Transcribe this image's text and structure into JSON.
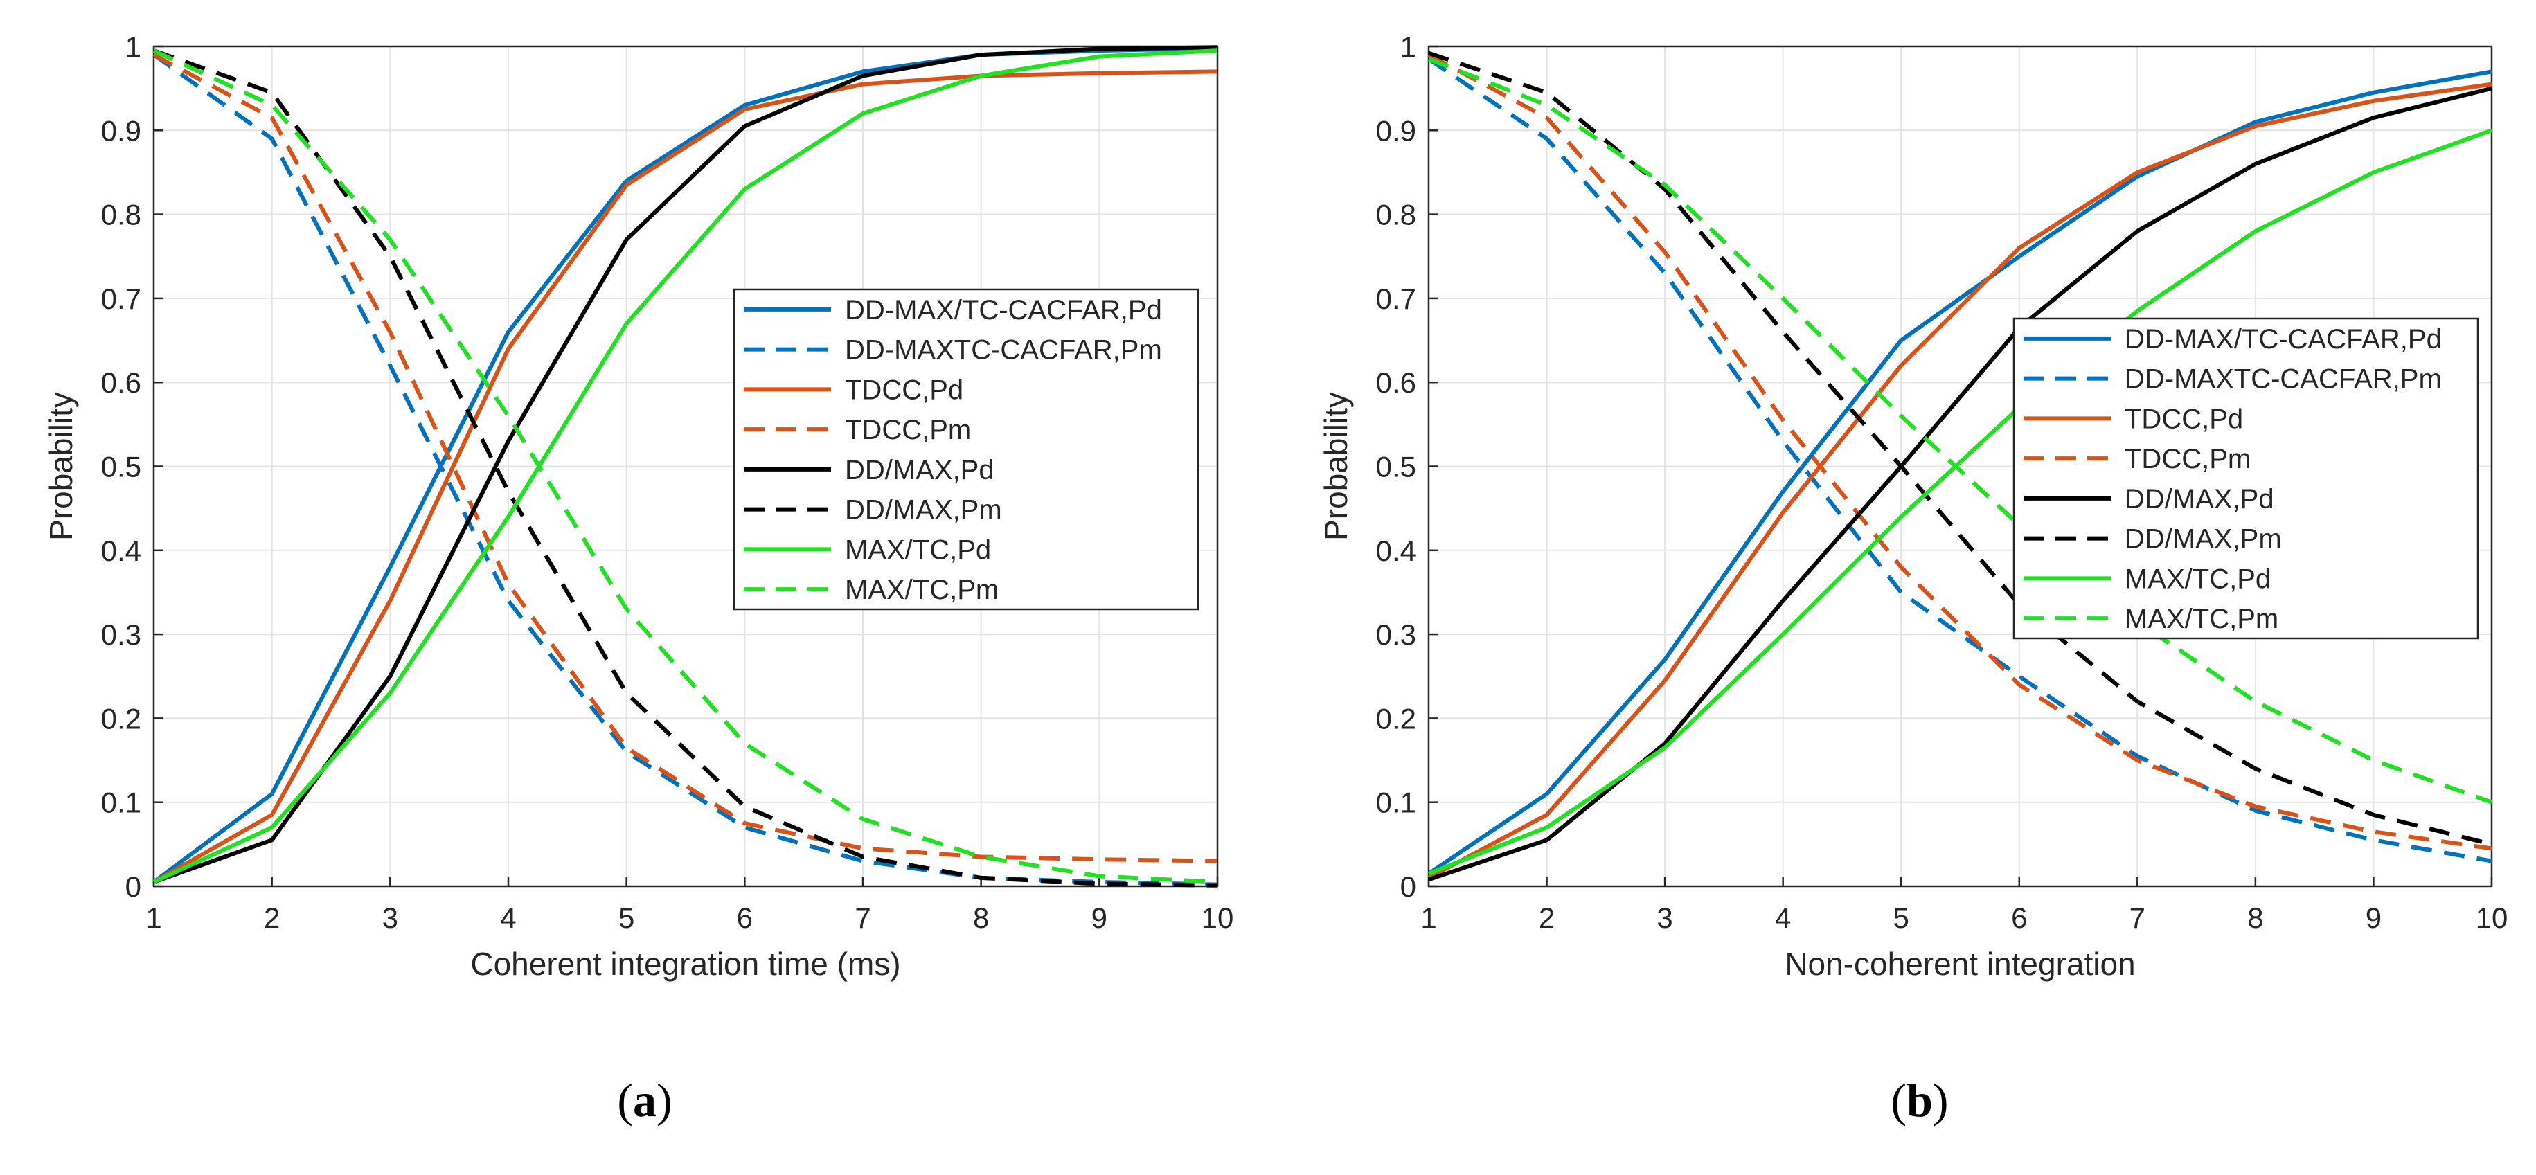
{
  "panels": [
    {
      "caption_open": "(",
      "caption_letter": "a",
      "caption_close": ")"
    },
    {
      "caption_open": "(",
      "caption_letter": "b",
      "caption_close": ")"
    }
  ],
  "chart_data": [
    {
      "type": "line",
      "title": "",
      "xlabel": "Coherent integration time (ms)",
      "ylabel": "Probability",
      "xlim": [
        1,
        10
      ],
      "ylim": [
        0,
        1
      ],
      "xticks": [
        "1",
        "2",
        "3",
        "4",
        "5",
        "6",
        "7",
        "8",
        "9",
        "10"
      ],
      "yticks": [
        "0",
        "0.1",
        "0.2",
        "0.3",
        "0.4",
        "0.5",
        "0.6",
        "0.7",
        "0.8",
        "0.9",
        "1"
      ],
      "grid": true,
      "legend_position": "right",
      "x": [
        1,
        2,
        3,
        4,
        5,
        6,
        7,
        8,
        9,
        10
      ],
      "series": [
        {
          "name": "DD-MAX/TC-CACFAR,Pd",
          "color": "#0072BD",
          "dash": "solid",
          "values": [
            0.005,
            0.11,
            0.38,
            0.66,
            0.84,
            0.93,
            0.97,
            0.99,
            0.995,
            0.998
          ]
        },
        {
          "name": "DD-MAXTC-CACFAR,Pm",
          "color": "#0072BD",
          "dash": "dashed",
          "values": [
            0.99,
            0.89,
            0.62,
            0.34,
            0.16,
            0.07,
            0.03,
            0.01,
            0.005,
            0.002
          ]
        },
        {
          "name": "TDCC,Pd",
          "color": "#D95319",
          "dash": "solid",
          "values": [
            0.005,
            0.085,
            0.34,
            0.64,
            0.835,
            0.925,
            0.955,
            0.965,
            0.968,
            0.97
          ]
        },
        {
          "name": "TDCC,Pm",
          "color": "#D95319",
          "dash": "dashed",
          "values": [
            0.99,
            0.915,
            0.66,
            0.36,
            0.165,
            0.075,
            0.045,
            0.035,
            0.032,
            0.03
          ]
        },
        {
          "name": "DD/MAX,Pd",
          "color": "#000000",
          "dash": "solid",
          "values": [
            0.005,
            0.055,
            0.25,
            0.53,
            0.77,
            0.905,
            0.965,
            0.99,
            0.997,
            0.999
          ]
        },
        {
          "name": "DD/MAX,Pm",
          "color": "#000000",
          "dash": "dashed",
          "values": [
            0.995,
            0.945,
            0.75,
            0.47,
            0.23,
            0.095,
            0.035,
            0.01,
            0.003,
            0.001
          ]
        },
        {
          "name": "MAX/TC,Pd",
          "color": "#22E022",
          "dash": "solid",
          "values": [
            0.005,
            0.07,
            0.23,
            0.44,
            0.67,
            0.83,
            0.92,
            0.965,
            0.988,
            0.995
          ]
        },
        {
          "name": "MAX/TC,Pm",
          "color": "#22E022",
          "dash": "dashed",
          "values": [
            0.995,
            0.93,
            0.77,
            0.56,
            0.33,
            0.17,
            0.08,
            0.035,
            0.012,
            0.005
          ]
        }
      ]
    },
    {
      "type": "line",
      "title": "",
      "xlabel": "Non-coherent integration",
      "ylabel": "Probability",
      "xlim": [
        1,
        10
      ],
      "ylim": [
        0,
        1
      ],
      "xticks": [
        "1",
        "2",
        "3",
        "4",
        "5",
        "6",
        "7",
        "8",
        "9",
        "10"
      ],
      "yticks": [
        "0",
        "0.1",
        "0.2",
        "0.3",
        "0.4",
        "0.5",
        "0.6",
        "0.7",
        "0.8",
        "0.9",
        "1"
      ],
      "grid": true,
      "legend_position": "right",
      "x": [
        1,
        2,
        3,
        4,
        5,
        6,
        7,
        8,
        9,
        10
      ],
      "series": [
        {
          "name": "DD-MAX/TC-CACFAR,Pd",
          "color": "#0072BD",
          "dash": "solid",
          "values": [
            0.015,
            0.11,
            0.27,
            0.47,
            0.65,
            0.75,
            0.845,
            0.91,
            0.945,
            0.97
          ]
        },
        {
          "name": "DD-MAXTC-CACFAR,Pm",
          "color": "#0072BD",
          "dash": "dashed",
          "values": [
            0.985,
            0.89,
            0.73,
            0.53,
            0.35,
            0.25,
            0.155,
            0.09,
            0.055,
            0.03
          ]
        },
        {
          "name": "TDCC,Pd",
          "color": "#D95319",
          "dash": "solid",
          "values": [
            0.01,
            0.085,
            0.245,
            0.445,
            0.62,
            0.76,
            0.85,
            0.905,
            0.935,
            0.955
          ]
        },
        {
          "name": "TDCC,Pm",
          "color": "#D95319",
          "dash": "dashed",
          "values": [
            0.99,
            0.915,
            0.755,
            0.555,
            0.38,
            0.24,
            0.15,
            0.095,
            0.065,
            0.045
          ]
        },
        {
          "name": "DD/MAX,Pd",
          "color": "#000000",
          "dash": "solid",
          "values": [
            0.008,
            0.055,
            0.17,
            0.34,
            0.5,
            0.665,
            0.78,
            0.86,
            0.915,
            0.95
          ]
        },
        {
          "name": "DD/MAX,Pm",
          "color": "#000000",
          "dash": "dashed",
          "values": [
            0.992,
            0.945,
            0.83,
            0.66,
            0.5,
            0.335,
            0.22,
            0.14,
            0.085,
            0.05
          ]
        },
        {
          "name": "MAX/TC,Pd",
          "color": "#22E022",
          "dash": "solid",
          "values": [
            0.015,
            0.07,
            0.165,
            0.3,
            0.44,
            0.57,
            0.685,
            0.78,
            0.85,
            0.9
          ]
        },
        {
          "name": "MAX/TC,Pm",
          "color": "#22E022",
          "dash": "dashed",
          "values": [
            0.985,
            0.93,
            0.835,
            0.7,
            0.56,
            0.43,
            0.315,
            0.22,
            0.15,
            0.1
          ]
        }
      ]
    }
  ]
}
